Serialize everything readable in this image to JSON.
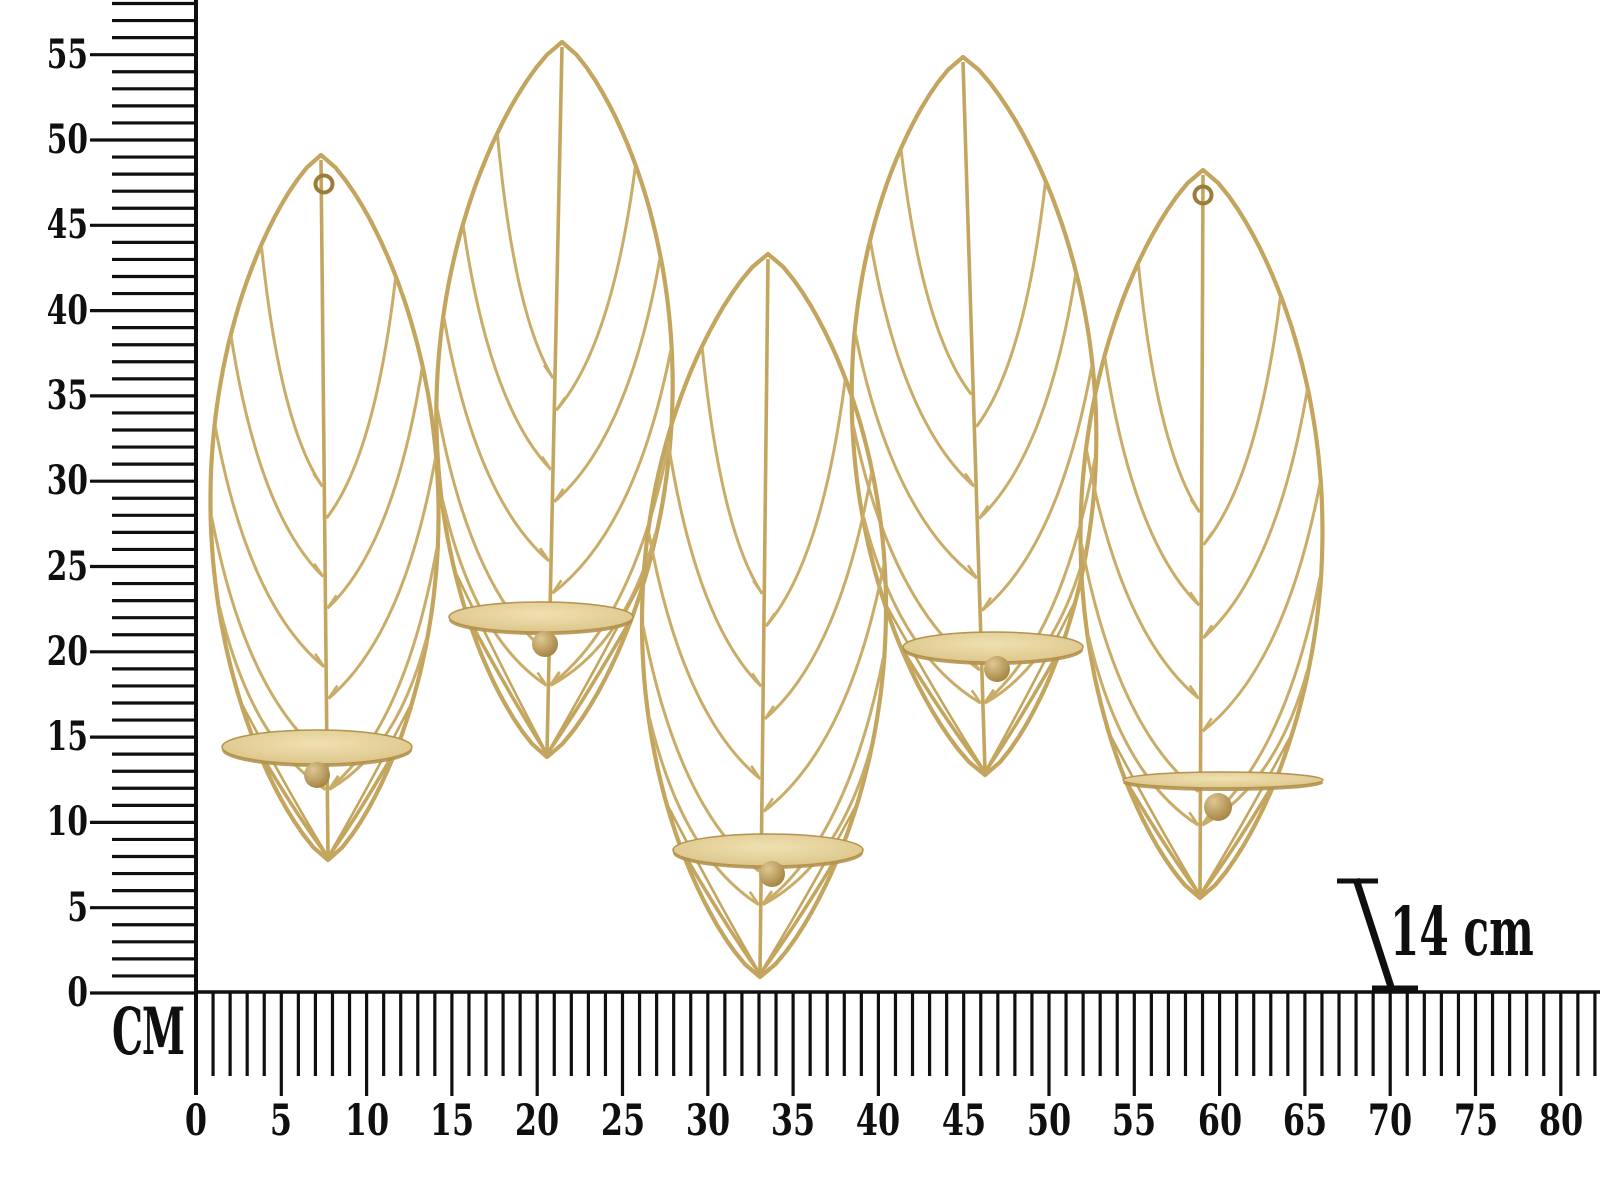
{
  "image_type": "product dimension illustration",
  "product": {
    "name": "Set of 5 gold metal wire leaf wall-mounted candle holders",
    "leaf_count": 5,
    "style": "marquise wire leaves with veins, each holding a round candle plate with ball finial",
    "finish": "gold"
  },
  "vertical_ruler": {
    "unit_label": "CM",
    "labels": [
      "0",
      "5",
      "10",
      "15",
      "20",
      "25",
      "30",
      "35",
      "40",
      "45",
      "50",
      "55"
    ]
  },
  "horizontal_ruler": {
    "labels": [
      "0",
      "5",
      "10",
      "15",
      "20",
      "25",
      "30",
      "35",
      "40",
      "45",
      "50",
      "55",
      "60",
      "65",
      "70",
      "75",
      "80"
    ]
  },
  "depth_annotation": {
    "label": "14 cm"
  },
  "colors": {
    "background": "#ffffff",
    "ruler_ink": "#0f0f0f",
    "wire_gold": "#c4a55e",
    "vein_gold": "#c9ac67",
    "dish_light": "#efe1b1",
    "dish_mid": "#dcc489",
    "dish_edge": "#b3934d",
    "ball_light": "#dfc793",
    "ball_dark": "#9e7e3a",
    "ring_gold": "#9a7c3c"
  }
}
